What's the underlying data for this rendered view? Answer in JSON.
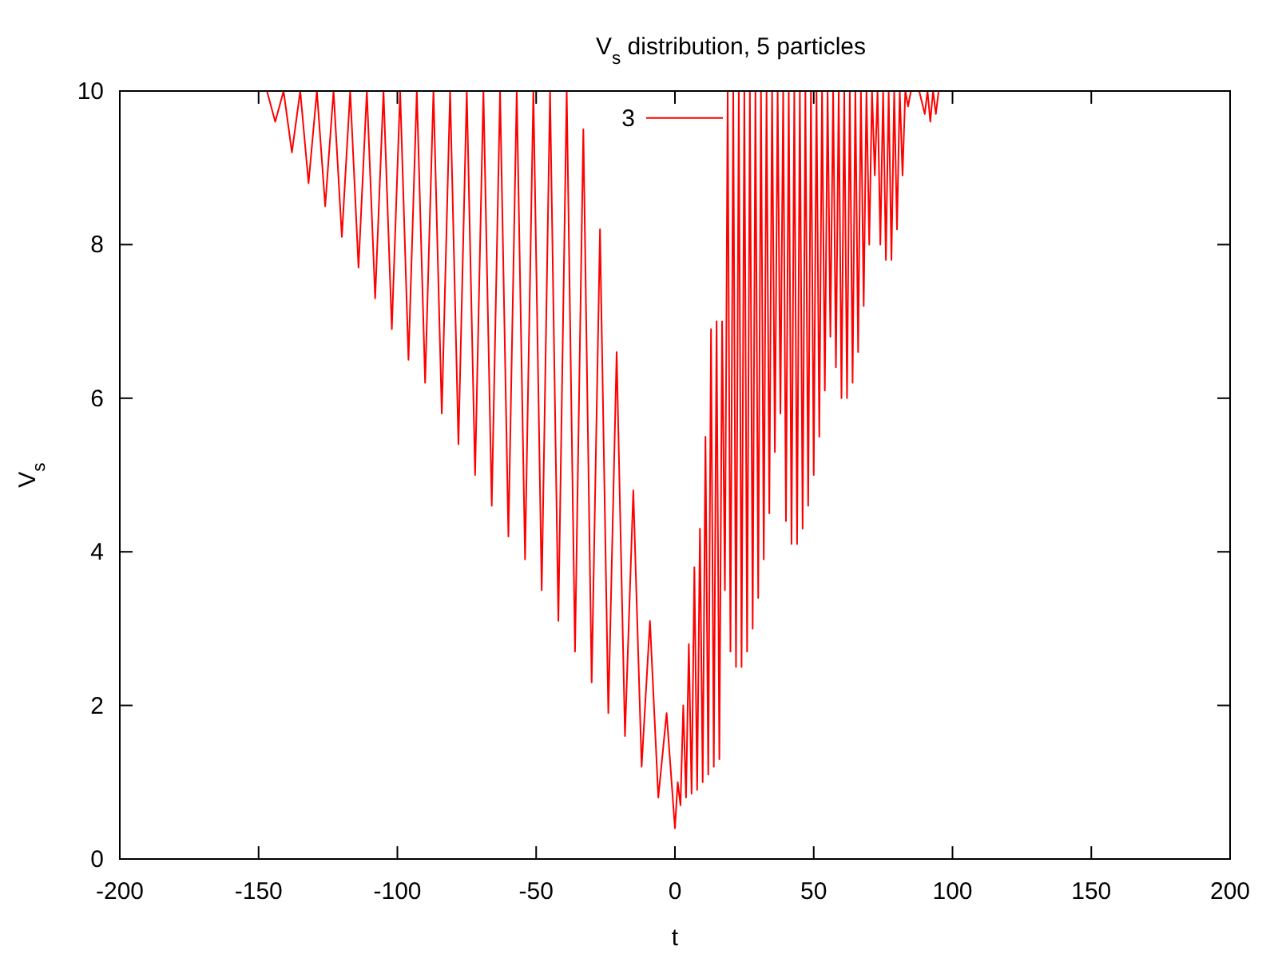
{
  "chart_data": {
    "type": "line",
    "title": "V$_{s}$ distribution, 5 particles",
    "xlabel": "t",
    "ylabel": "V$_{s}$",
    "xlim": [
      -200,
      200
    ],
    "ylim": [
      0,
      10
    ],
    "xticks": [
      -200,
      -150,
      -100,
      -50,
      0,
      50,
      100,
      150,
      200
    ],
    "yticks": [
      0,
      2,
      4,
      6,
      8,
      10
    ],
    "legend": "top",
    "grid": false,
    "marker": "none",
    "line_style": "solid",
    "series": [
      {
        "name": "3",
        "color": "#ff0000",
        "x": [
          -147,
          -144,
          -141,
          -138,
          -135,
          -132,
          -129,
          -126,
          -123,
          -120,
          -117,
          -114,
          -111,
          -108,
          -105,
          -102,
          -99,
          -96,
          -93,
          -90,
          -87,
          -84,
          -81,
          -78,
          -75,
          -72,
          -69,
          -66,
          -63,
          -60,
          -57,
          -54,
          -51,
          -48,
          -45,
          -42,
          -39,
          -36,
          -33,
          -30,
          -27,
          -24,
          -21,
          -18,
          -15,
          -12,
          -9,
          -6,
          -3,
          0,
          1,
          2,
          3,
          4,
          5,
          6,
          7,
          8,
          9,
          10,
          11,
          12,
          13,
          14,
          15,
          16,
          17,
          18,
          19,
          20,
          21,
          22,
          23,
          24,
          25,
          26,
          27,
          28,
          29,
          30,
          31,
          32,
          33,
          34,
          35,
          36,
          37,
          38,
          39,
          40,
          41,
          42,
          43,
          44,
          45,
          46,
          47,
          48,
          49,
          50,
          51,
          52,
          53,
          54,
          55,
          56,
          57,
          58,
          59,
          60,
          61,
          62,
          63,
          64,
          65,
          66,
          67,
          68,
          69,
          70,
          71,
          72,
          73,
          74,
          75,
          76,
          77,
          78,
          79,
          80,
          81,
          82,
          83,
          84,
          85,
          86,
          88,
          90,
          91,
          92,
          93,
          94,
          95,
          96
        ],
        "values": [
          10,
          9.6,
          10,
          9.2,
          10,
          8.8,
          10,
          8.5,
          10,
          8.1,
          10,
          7.7,
          10,
          7.3,
          10,
          6.9,
          10,
          6.5,
          10,
          6.2,
          10,
          5.8,
          10,
          5.4,
          10,
          5.0,
          10,
          4.6,
          10,
          4.2,
          10,
          3.9,
          10,
          3.5,
          10,
          3.1,
          10,
          2.7,
          9.5,
          2.3,
          8.2,
          1.9,
          6.6,
          1.6,
          4.8,
          1.2,
          3.1,
          0.8,
          1.9,
          0.4,
          1.0,
          0.7,
          2.0,
          0.8,
          2.8,
          0.85,
          3.8,
          0.9,
          4.3,
          1.0,
          5.5,
          1.1,
          6.9,
          1.2,
          7.0,
          1.3,
          7.0,
          3.5,
          10,
          2.7,
          10,
          2.5,
          10,
          2.5,
          10,
          2.7,
          10,
          3.0,
          10,
          3.4,
          10,
          3.9,
          10,
          4.5,
          10,
          5.3,
          10,
          5.8,
          10,
          4.4,
          10,
          4.1,
          10,
          4.1,
          10,
          4.3,
          10,
          4.6,
          10,
          5.0,
          10,
          5.5,
          10,
          6.1,
          10,
          6.8,
          10,
          6.4,
          10,
          6.0,
          10,
          6.0,
          10,
          6.2,
          10,
          6.6,
          10,
          7.2,
          10,
          8.0,
          10,
          8.9,
          10,
          8.0,
          10,
          7.8,
          10,
          7.8,
          10,
          8.2,
          10,
          8.9,
          10,
          9.8,
          10,
          10,
          10,
          9.7,
          10,
          9.6,
          10,
          9.7,
          10,
          10
        ]
      }
    ]
  }
}
